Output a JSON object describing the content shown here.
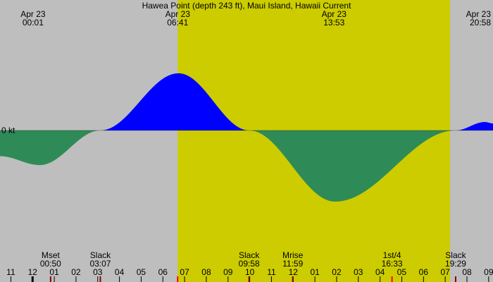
{
  "chart_data": {
    "type": "area",
    "title": "Hawea Point (depth 243 ft), Maui Island, Hawaii Current",
    "zero_label": "0 kt",
    "colors": {
      "background": "#bebebe",
      "daylight": "#cccc00",
      "flood": "#0000ff",
      "ebb": "#2e8b57",
      "tick_red": "#ff0000",
      "tick_dark_red": "#8b0000",
      "tick_black": "#000000"
    },
    "x_range_hours": [
      -1.5,
      21.2
    ],
    "daylight_hours": [
      6.68,
      19.22
    ],
    "time_labels": [
      {
        "date": "Apr 23",
        "time": "00:01",
        "hour": 0.02,
        "align": "middle"
      },
      {
        "date": "Apr 23",
        "time": "06:41",
        "hour": 6.68,
        "align": "middle"
      },
      {
        "date": "Apr 23",
        "time": "13:53",
        "hour": 13.88,
        "align": "middle"
      },
      {
        "date": "Apr 23",
        "time": "20:58",
        "hour": 20.97,
        "align": "end"
      }
    ],
    "current_kt": [
      {
        "hour": -1.5,
        "value": -0.55
      },
      {
        "hour": 0.33,
        "value": -0.74
      },
      {
        "hour": 3.12,
        "value": 0.0
      },
      {
        "hour": 6.72,
        "value": 1.22
      },
      {
        "hour": 9.97,
        "value": 0.0
      },
      {
        "hour": 13.93,
        "value": -1.52
      },
      {
        "hour": 19.48,
        "value": 0.0
      },
      {
        "hour": 20.83,
        "value": 0.18
      },
      {
        "hour": 21.2,
        "value": 0.15
      }
    ],
    "value_range_kt": [
      -2.5,
      2.5
    ],
    "events": [
      {
        "label": "Mset",
        "time": "00:50",
        "hour": 0.83
      },
      {
        "label": "Slack",
        "time": "03:07",
        "hour": 3.12
      },
      {
        "label": "Slack",
        "time": "09:58",
        "hour": 9.97
      },
      {
        "label": "Mrise",
        "time": "11:59",
        "hour": 11.98
      },
      {
        "label": "1st/4",
        "time": "16:33",
        "hour": 16.55
      },
      {
        "label": "Slack",
        "time": "19:29",
        "hour": 19.48
      }
    ],
    "hour_ticks": [
      {
        "label": "11",
        "hour": -1
      },
      {
        "label": "12",
        "hour": 0
      },
      {
        "label": "01",
        "hour": 1
      },
      {
        "label": "02",
        "hour": 2
      },
      {
        "label": "03",
        "hour": 3
      },
      {
        "label": "04",
        "hour": 4
      },
      {
        "label": "05",
        "hour": 5
      },
      {
        "label": "06",
        "hour": 6
      },
      {
        "label": "07",
        "hour": 7
      },
      {
        "label": "08",
        "hour": 8
      },
      {
        "label": "09",
        "hour": 9
      },
      {
        "label": "10",
        "hour": 10
      },
      {
        "label": "11",
        "hour": 11
      },
      {
        "label": "12",
        "hour": 12
      },
      {
        "label": "01",
        "hour": 13
      },
      {
        "label": "02",
        "hour": 14
      },
      {
        "label": "03",
        "hour": 15
      },
      {
        "label": "04",
        "hour": 16
      },
      {
        "label": "05",
        "hour": 17
      },
      {
        "label": "06",
        "hour": 18
      },
      {
        "label": "07",
        "hour": 19
      },
      {
        "label": "08",
        "hour": 20
      },
      {
        "label": "09",
        "hour": 21
      }
    ],
    "event_tick_marks": [
      {
        "hour": 0.0,
        "kind": "midnight"
      },
      {
        "hour": 0.83,
        "kind": "moon"
      },
      {
        "hour": 3.12,
        "kind": "slack"
      },
      {
        "hour": 6.68,
        "kind": "sun"
      },
      {
        "hour": 9.97,
        "kind": "slack"
      },
      {
        "hour": 11.98,
        "kind": "moon"
      },
      {
        "hour": 16.55,
        "kind": "phase"
      },
      {
        "hour": 19.48,
        "kind": "slack"
      }
    ]
  }
}
